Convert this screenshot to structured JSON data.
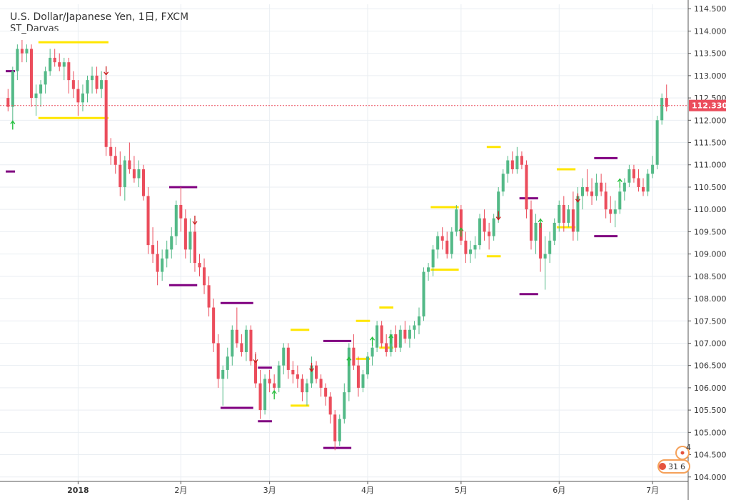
{
  "chart_data": {
    "type": "candlestick",
    "title": "U.S. Dollar/Japanese Yen, 1日, FXCM",
    "indicator": "ST_Darvas",
    "ylim": [
      103.9,
      114.6
    ],
    "y_ticks": [
      "104.000",
      "104.500",
      "105.000",
      "105.500",
      "106.000",
      "106.500",
      "107.000",
      "107.500",
      "108.000",
      "108.500",
      "109.000",
      "109.500",
      "110.000",
      "110.500",
      "111.000",
      "111.500",
      "112.000",
      "112.500",
      "113.000",
      "113.500",
      "114.000",
      "114.500"
    ],
    "x_ticks": [
      {
        "label": "2018",
        "index": 15,
        "bold": true
      },
      {
        "label": "2月",
        "index": 37,
        "bold": false
      },
      {
        "label": "3月",
        "index": 56,
        "bold": false
      },
      {
        "label": "4月",
        "index": 77,
        "bold": false
      },
      {
        "label": "5月",
        "index": 97,
        "bold": false
      },
      {
        "label": "6月",
        "index": 118,
        "bold": false
      },
      {
        "label": "7月",
        "index": 138,
        "bold": false
      }
    ],
    "last_price": "112.330",
    "last_price_value": 112.33,
    "grid": true,
    "colors": {
      "up": "#53b987",
      "down": "#eb4d5c",
      "yellow": "#ffe600",
      "purple": "#800080",
      "price_line": "#eb4d5c",
      "grid": "#e9eef2"
    },
    "candles": [
      [
        112.5,
        112.7,
        112.2,
        112.3
      ],
      [
        112.3,
        113.2,
        111.8,
        113.1
      ],
      [
        113.1,
        113.7,
        112.9,
        113.6
      ],
      [
        113.6,
        113.8,
        113.3,
        113.5
      ],
      [
        113.5,
        113.7,
        113.3,
        113.6
      ],
      [
        113.6,
        113.7,
        112.3,
        112.5
      ],
      [
        112.5,
        112.8,
        112.1,
        112.6
      ],
      [
        112.6,
        112.9,
        112.3,
        112.8
      ],
      [
        112.8,
        113.2,
        112.6,
        113.1
      ],
      [
        113.1,
        113.6,
        113.0,
        113.4
      ],
      [
        113.4,
        113.6,
        113.2,
        113.3
      ],
      [
        113.3,
        113.5,
        113.1,
        113.2
      ],
      [
        113.2,
        113.4,
        112.9,
        113.3
      ],
      [
        113.3,
        113.4,
        112.6,
        112.9
      ],
      [
        112.9,
        113.1,
        112.5,
        112.7
      ],
      [
        112.7,
        112.9,
        112.1,
        112.4
      ],
      [
        112.4,
        112.8,
        112.2,
        112.6
      ],
      [
        112.6,
        113.0,
        112.4,
        112.9
      ],
      [
        112.9,
        113.2,
        112.6,
        113.0
      ],
      [
        113.0,
        113.2,
        112.6,
        112.7
      ],
      [
        112.7,
        113.1,
        112.5,
        112.9
      ],
      [
        112.9,
        113.0,
        111.2,
        111.4
      ],
      [
        111.4,
        111.6,
        111.0,
        111.2
      ],
      [
        111.2,
        111.4,
        110.8,
        111.0
      ],
      [
        111.0,
        111.3,
        110.3,
        110.5
      ],
      [
        110.5,
        111.2,
        110.2,
        111.1
      ],
      [
        111.1,
        111.5,
        110.8,
        110.9
      ],
      [
        110.9,
        111.2,
        110.6,
        110.7
      ],
      [
        110.7,
        111.1,
        110.5,
        110.9
      ],
      [
        110.9,
        111.0,
        110.2,
        110.3
      ],
      [
        110.3,
        110.5,
        109.0,
        109.2
      ],
      [
        109.2,
        109.6,
        108.8,
        109.0
      ],
      [
        109.0,
        109.3,
        108.3,
        108.6
      ],
      [
        108.6,
        109.1,
        108.4,
        108.9
      ],
      [
        108.9,
        109.3,
        108.7,
        109.1
      ],
      [
        109.1,
        109.6,
        108.9,
        109.4
      ],
      [
        109.4,
        110.2,
        109.2,
        110.1
      ],
      [
        110.1,
        110.5,
        109.5,
        109.8
      ],
      [
        109.8,
        110.0,
        108.9,
        109.1
      ],
      [
        109.1,
        109.8,
        108.8,
        109.5
      ],
      [
        109.5,
        109.7,
        108.6,
        108.8
      ],
      [
        108.8,
        109.0,
        108.5,
        108.7
      ],
      [
        108.7,
        108.9,
        108.1,
        108.3
      ],
      [
        108.3,
        108.5,
        107.6,
        107.8
      ],
      [
        107.8,
        108.0,
        106.8,
        107.0
      ],
      [
        107.0,
        107.2,
        106.0,
        106.2
      ],
      [
        106.2,
        106.5,
        105.6,
        106.4
      ],
      [
        106.4,
        106.9,
        106.2,
        106.7
      ],
      [
        106.7,
        107.4,
        106.5,
        107.3
      ],
      [
        107.3,
        107.8,
        106.9,
        107.0
      ],
      [
        107.0,
        107.2,
        106.7,
        106.8
      ],
      [
        106.8,
        107.4,
        106.6,
        107.3
      ],
      [
        107.3,
        107.4,
        106.5,
        106.6
      ],
      [
        106.6,
        106.8,
        106.0,
        106.1
      ],
      [
        106.1,
        106.4,
        105.3,
        105.5
      ],
      [
        105.5,
        106.3,
        105.4,
        106.2
      ],
      [
        106.2,
        106.4,
        105.9,
        106.1
      ],
      [
        106.1,
        106.3,
        105.8,
        106.0
      ],
      [
        106.0,
        106.6,
        105.9,
        106.5
      ],
      [
        106.5,
        107.0,
        106.3,
        106.9
      ],
      [
        106.9,
        107.0,
        106.2,
        106.4
      ],
      [
        106.4,
        106.6,
        106.1,
        106.3
      ],
      [
        106.3,
        106.5,
        106.0,
        106.2
      ],
      [
        106.2,
        106.3,
        105.7,
        105.9
      ],
      [
        105.9,
        106.2,
        105.6,
        106.1
      ],
      [
        106.1,
        106.7,
        106.0,
        106.5
      ],
      [
        106.5,
        106.6,
        106.1,
        106.2
      ],
      [
        106.2,
        106.3,
        105.8,
        106.0
      ],
      [
        106.0,
        106.1,
        105.6,
        105.8
      ],
      [
        105.8,
        105.9,
        105.2,
        105.4
      ],
      [
        105.4,
        105.5,
        104.6,
        104.8
      ],
      [
        104.8,
        105.4,
        104.7,
        105.3
      ],
      [
        105.3,
        106.1,
        105.2,
        105.9
      ],
      [
        105.9,
        107.0,
        105.7,
        106.9
      ],
      [
        106.9,
        107.2,
        106.4,
        106.5
      ],
      [
        106.5,
        106.7,
        105.8,
        106.0
      ],
      [
        106.0,
        106.4,
        105.9,
        106.3
      ],
      [
        106.3,
        106.8,
        106.2,
        106.7
      ],
      [
        106.7,
        107.0,
        106.5,
        106.9
      ],
      [
        106.9,
        107.5,
        106.8,
        107.4
      ],
      [
        107.4,
        107.5,
        106.9,
        107.0
      ],
      [
        107.0,
        107.2,
        106.7,
        106.8
      ],
      [
        106.8,
        107.3,
        106.7,
        107.2
      ],
      [
        107.2,
        107.4,
        106.8,
        106.9
      ],
      [
        106.9,
        107.4,
        106.8,
        107.3
      ],
      [
        107.3,
        107.5,
        107.0,
        107.1
      ],
      [
        107.1,
        107.4,
        106.9,
        107.3
      ],
      [
        107.3,
        107.5,
        107.1,
        107.4
      ],
      [
        107.4,
        107.8,
        107.2,
        107.6
      ],
      [
        107.6,
        108.7,
        107.5,
        108.6
      ],
      [
        108.6,
        108.8,
        108.4,
        108.7
      ],
      [
        108.7,
        109.2,
        108.5,
        109.1
      ],
      [
        109.1,
        109.5,
        108.9,
        109.4
      ],
      [
        109.4,
        109.6,
        109.1,
        109.3
      ],
      [
        109.3,
        109.5,
        108.9,
        109.0
      ],
      [
        109.0,
        109.6,
        108.9,
        109.5
      ],
      [
        109.5,
        110.1,
        109.4,
        110.0
      ],
      [
        110.0,
        110.1,
        109.2,
        109.3
      ],
      [
        109.3,
        109.5,
        108.8,
        109.0
      ],
      [
        109.0,
        109.3,
        108.8,
        109.1
      ],
      [
        109.1,
        109.4,
        108.9,
        109.2
      ],
      [
        109.2,
        109.9,
        109.1,
        109.8
      ],
      [
        109.8,
        110.0,
        109.3,
        109.5
      ],
      [
        109.5,
        109.7,
        109.1,
        109.4
      ],
      [
        109.4,
        109.9,
        109.3,
        109.8
      ],
      [
        109.8,
        110.5,
        109.7,
        110.4
      ],
      [
        110.4,
        110.9,
        110.3,
        110.8
      ],
      [
        110.8,
        111.2,
        110.6,
        111.1
      ],
      [
        111.1,
        111.3,
        110.8,
        110.9
      ],
      [
        110.9,
        111.4,
        110.8,
        111.2
      ],
      [
        111.2,
        111.3,
        110.9,
        111.0
      ],
      [
        111.0,
        111.1,
        109.8,
        110.0
      ],
      [
        110.0,
        110.2,
        109.1,
        109.3
      ],
      [
        109.3,
        109.9,
        109.0,
        109.7
      ],
      [
        109.7,
        109.8,
        108.6,
        108.9
      ],
      [
        108.9,
        109.4,
        108.2,
        109.0
      ],
      [
        109.0,
        109.5,
        108.8,
        109.3
      ],
      [
        109.3,
        109.8,
        109.2,
        109.7
      ],
      [
        109.7,
        110.2,
        109.5,
        110.1
      ],
      [
        110.1,
        110.3,
        109.5,
        109.7
      ],
      [
        109.7,
        110.1,
        109.6,
        110.0
      ],
      [
        110.0,
        110.4,
        109.3,
        109.5
      ],
      [
        109.5,
        110.5,
        109.3,
        110.3
      ],
      [
        110.3,
        110.7,
        110.0,
        110.5
      ],
      [
        110.5,
        110.9,
        110.3,
        110.4
      ],
      [
        110.4,
        110.7,
        110.1,
        110.3
      ],
      [
        110.3,
        110.8,
        110.2,
        110.6
      ],
      [
        110.6,
        110.8,
        110.3,
        110.4
      ],
      [
        110.4,
        110.6,
        109.8,
        110.0
      ],
      [
        110.0,
        110.3,
        109.7,
        109.9
      ],
      [
        109.9,
        110.2,
        109.6,
        110.0
      ],
      [
        110.0,
        110.5,
        109.9,
        110.4
      ],
      [
        110.4,
        110.7,
        110.2,
        110.6
      ],
      [
        110.6,
        111.0,
        110.5,
        110.9
      ],
      [
        110.9,
        111.0,
        110.6,
        110.7
      ],
      [
        110.7,
        110.9,
        110.4,
        110.5
      ],
      [
        110.5,
        110.7,
        110.3,
        110.4
      ],
      [
        110.4,
        110.9,
        110.3,
        110.8
      ],
      [
        110.8,
        111.2,
        110.7,
        111.0
      ],
      [
        111.0,
        112.1,
        110.9,
        112.0
      ],
      [
        112.0,
        112.6,
        111.9,
        112.5
      ],
      [
        112.5,
        112.8,
        112.2,
        112.3
      ]
    ],
    "levels": [
      {
        "color": "yellow",
        "start": 7,
        "end": 21,
        "price": 113.75
      },
      {
        "color": "yellow",
        "start": 7,
        "end": 21,
        "price": 112.05
      },
      {
        "color": "purple",
        "start": 0,
        "end": 1,
        "price": 113.1
      },
      {
        "color": "purple",
        "start": 0,
        "end": 1,
        "price": 110.85
      },
      {
        "color": "purple",
        "start": 35,
        "end": 40,
        "price": 110.5
      },
      {
        "color": "purple",
        "start": 35,
        "end": 40,
        "price": 108.3
      },
      {
        "color": "purple",
        "start": 46,
        "end": 52,
        "price": 107.9
      },
      {
        "color": "purple",
        "start": 46,
        "end": 52,
        "price": 105.55
      },
      {
        "color": "purple",
        "start": 54,
        "end": 56,
        "price": 106.45
      },
      {
        "color": "purple",
        "start": 54,
        "end": 56,
        "price": 105.25
      },
      {
        "color": "yellow",
        "start": 61,
        "end": 64,
        "price": 107.3
      },
      {
        "color": "yellow",
        "start": 61,
        "end": 64,
        "price": 105.6
      },
      {
        "color": "purple",
        "start": 68,
        "end": 73,
        "price": 107.05
      },
      {
        "color": "purple",
        "start": 68,
        "end": 73,
        "price": 104.65
      },
      {
        "color": "yellow",
        "start": 75,
        "end": 77,
        "price": 107.5
      },
      {
        "color": "yellow",
        "start": 75,
        "end": 77,
        "price": 106.65
      },
      {
        "color": "yellow",
        "start": 80,
        "end": 82,
        "price": 107.8
      },
      {
        "color": "yellow",
        "start": 80,
        "end": 82,
        "price": 106.9
      },
      {
        "color": "yellow",
        "start": 91,
        "end": 96,
        "price": 110.05
      },
      {
        "color": "yellow",
        "start": 91,
        "end": 96,
        "price": 108.65
      },
      {
        "color": "yellow",
        "start": 103,
        "end": 105,
        "price": 111.4
      },
      {
        "color": "yellow",
        "start": 103,
        "end": 105,
        "price": 108.95
      },
      {
        "color": "purple",
        "start": 110,
        "end": 113,
        "price": 110.25
      },
      {
        "color": "purple",
        "start": 110,
        "end": 113,
        "price": 108.1
      },
      {
        "color": "yellow",
        "start": 118,
        "end": 121,
        "price": 110.9
      },
      {
        "color": "yellow",
        "start": 118,
        "end": 121,
        "price": 109.6
      },
      {
        "color": "purple",
        "start": 126,
        "end": 130,
        "price": 111.15
      },
      {
        "color": "purple",
        "start": 126,
        "end": 130,
        "price": 109.4
      }
    ],
    "arrows": [
      {
        "index": 1,
        "dir": "up",
        "price": 111.95
      },
      {
        "index": 21,
        "dir": "down",
        "price": 113.05
      },
      {
        "index": 40,
        "dir": "down",
        "price": 109.7
      },
      {
        "index": 53,
        "dir": "down",
        "price": 106.6
      },
      {
        "index": 57,
        "dir": "up",
        "price": 105.9
      },
      {
        "index": 65,
        "dir": "down",
        "price": 106.4
      },
      {
        "index": 73,
        "dir": "up",
        "price": 106.65
      },
      {
        "index": 78,
        "dir": "up",
        "price": 107.1
      },
      {
        "index": 82,
        "dir": "up",
        "price": 107.15
      },
      {
        "index": 97,
        "dir": "up",
        "price": 109.55
      },
      {
        "index": 105,
        "dir": "down",
        "price": 109.8
      },
      {
        "index": 114,
        "dir": "up",
        "price": 109.75
      },
      {
        "index": 122,
        "dir": "down",
        "price": 110.2
      },
      {
        "index": 131,
        "dir": "up",
        "price": 110.65
      }
    ],
    "badge": {
      "top_text": "4",
      "left_text": "31",
      "right_text": "6"
    }
  }
}
